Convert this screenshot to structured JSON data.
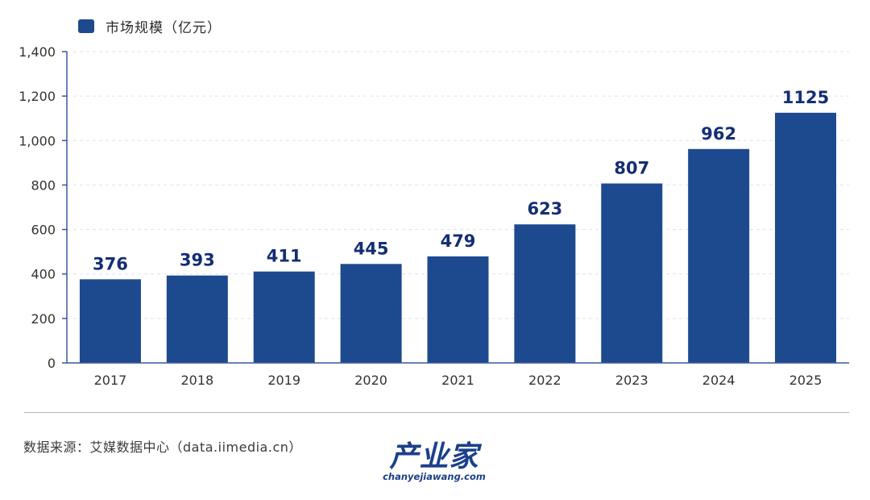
{
  "legend": {
    "label": "市场规模（亿元）"
  },
  "colors": {
    "bar": "#1d4a8e",
    "value_label": "#142d74",
    "axis": "#3b56a0",
    "grid": "#dde3ee",
    "tick": "#333333"
  },
  "chart_data": {
    "type": "bar",
    "categories": [
      "2017",
      "2018",
      "2019",
      "2020",
      "2021",
      "2022",
      "2023",
      "2024",
      "2025"
    ],
    "series": [
      {
        "name": "市场规模（亿元）",
        "values": [
          376,
          393,
          411,
          445,
          479,
          623,
          807,
          962,
          1125
        ]
      }
    ],
    "data_labels": [
      "376",
      "393",
      "411",
      "445",
      "479",
      "623",
      "807",
      "962",
      "1125"
    ],
    "ylim": [
      0,
      1400
    ],
    "yticks": [
      0,
      200,
      400,
      600,
      800,
      1000,
      1200,
      1400
    ],
    "ytick_labels": [
      "0",
      "200",
      "400",
      "600",
      "800",
      "1,000",
      "1,200",
      "1,400"
    ],
    "grid": true,
    "legend_position": "top-left"
  },
  "footer": {
    "source": "数据来源：艾媒数据中心（data.iimedia.cn）"
  },
  "brand": {
    "name": "产业家",
    "domain": "chanyejiawang.com"
  }
}
